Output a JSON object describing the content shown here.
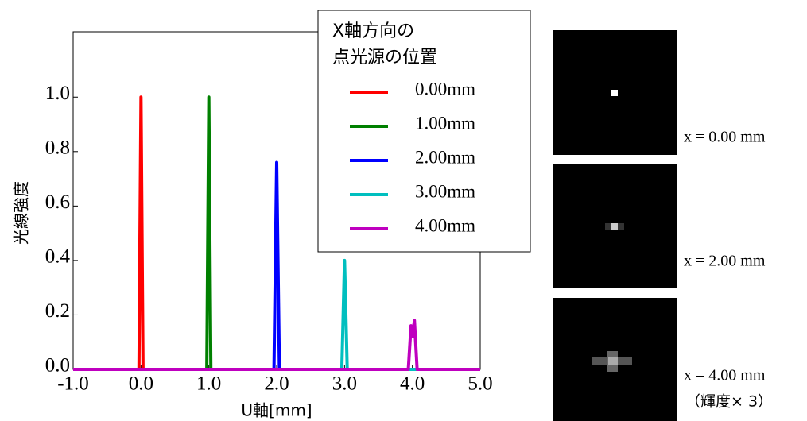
{
  "chart_data": {
    "type": "line",
    "xlabel": "U軸[mm]",
    "ylabel": "光線強度",
    "legend_title": [
      "X軸方向の",
      "点光源の位置"
    ],
    "legend": "upper right",
    "xlim": [
      -1,
      5
    ],
    "ylim": [
      0,
      1.24
    ],
    "xticks": [
      {
        "value": -1,
        "label": "-1.0"
      },
      {
        "value": 0,
        "label": "0.0"
      },
      {
        "value": 1,
        "label": "1.0"
      },
      {
        "value": 2,
        "label": "2.0"
      },
      {
        "value": 3,
        "label": "3.0"
      },
      {
        "value": 4,
        "label": "4.0"
      },
      {
        "value": 5,
        "label": "5.0"
      }
    ],
    "yticks": [
      {
        "value": 0,
        "label": "0.0"
      },
      {
        "value": 0.2,
        "label": "0.2"
      },
      {
        "value": 0.4,
        "label": "0.4"
      },
      {
        "value": 0.6,
        "label": "0.6"
      },
      {
        "value": 0.8,
        "label": "0.8"
      },
      {
        "value": 1,
        "label": "1.0"
      }
    ],
    "series": [
      {
        "name": "0.00mm",
        "color": "#ff0000",
        "x": [
          -1,
          -0.03,
          0,
          0.03,
          5
        ],
        "values": [
          0,
          0,
          1.0,
          0,
          0
        ]
      },
      {
        "name": "1.00mm",
        "color": "#008000",
        "x": [
          -1,
          0.97,
          1.0,
          1.03,
          5
        ],
        "values": [
          0,
          0,
          1.0,
          0,
          0
        ]
      },
      {
        "name": "2.00mm",
        "color": "#0000ff",
        "x": [
          -1,
          1.96,
          2.0,
          2.04,
          5
        ],
        "values": [
          0,
          0,
          0.76,
          0,
          0
        ]
      },
      {
        "name": "3.00mm",
        "color": "#00bfbf",
        "x": [
          -1,
          2.96,
          3.0,
          3.04,
          5
        ],
        "values": [
          0,
          0,
          0.4,
          0,
          0
        ]
      },
      {
        "name": "4.00mm",
        "color": "#bf00bf",
        "x": [
          -1,
          3.94,
          3.98,
          4.0,
          4.03,
          4.07,
          5
        ],
        "values": [
          0,
          0,
          0.16,
          0.12,
          0.18,
          0,
          0
        ]
      }
    ]
  },
  "panels": [
    {
      "label": "x = 0.00 mm"
    },
    {
      "label": "x = 2.00 mm"
    },
    {
      "label": "x = 4.00 mm",
      "note": "（輝度× 3）"
    }
  ]
}
